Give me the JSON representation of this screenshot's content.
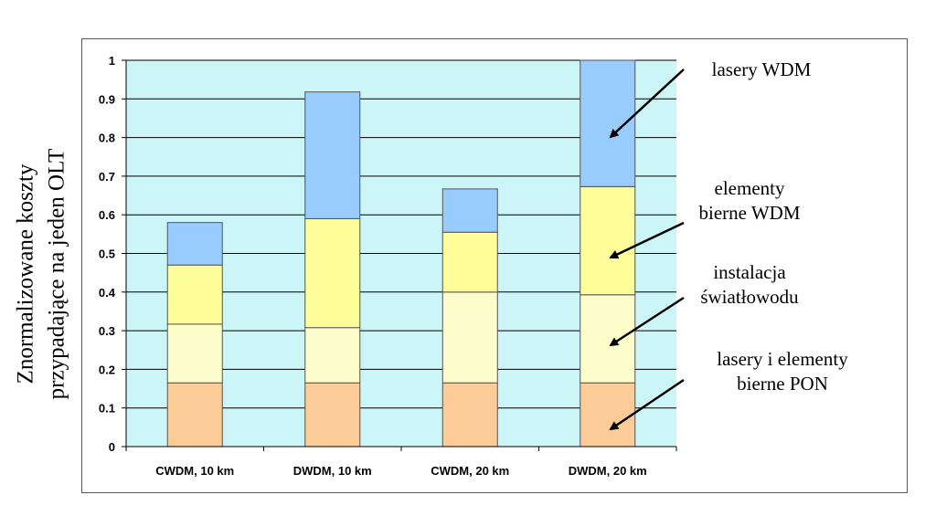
{
  "chart_data": {
    "type": "bar",
    "stacked": true,
    "ylabel_lines": [
      "Znormalizowane koszty",
      "przypadające  na jeden OLT"
    ],
    "categories": [
      "CWDM, 10 km",
      "DWDM, 10 km",
      "CWDM, 20 km",
      "DWDM, 20 km"
    ],
    "ylim": [
      0,
      1
    ],
    "yticks": [
      "0",
      "0.1",
      "0.2",
      "0.3",
      "0.4",
      "0.5",
      "0.6",
      "0.7",
      "0.8",
      "0.9",
      "1"
    ],
    "grid": true,
    "plot_background": "#ccf5f7",
    "series": [
      {
        "name": "lasery i elementy bierne PON",
        "color": "#fbcb98",
        "values": [
          0.165,
          0.165,
          0.165,
          0.165
        ]
      },
      {
        "name": "instalacja światłowodu",
        "color": "#fdfdcb",
        "values": [
          0.152,
          0.143,
          0.235,
          0.228
        ]
      },
      {
        "name": "elementy bierne WDM",
        "color": "#fdfd99",
        "values": [
          0.153,
          0.282,
          0.155,
          0.28
        ]
      },
      {
        "name": "lasery WDM",
        "color": "#99ccfe",
        "values": [
          0.11,
          0.328,
          0.112,
          0.327
        ]
      }
    ],
    "annotations": [
      {
        "lines": [
          "lasery WDM"
        ]
      },
      {
        "lines": [
          "elementy",
          "bierne WDM"
        ]
      },
      {
        "lines": [
          "instalacja",
          "światłowodu"
        ]
      },
      {
        "lines": [
          "lasery i elementy",
          "bierne PON"
        ]
      }
    ]
  }
}
